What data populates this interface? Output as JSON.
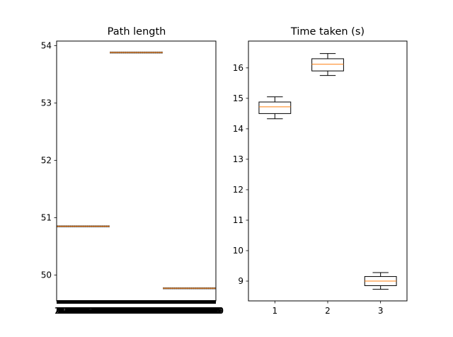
{
  "chart_data": [
    {
      "type": "boxplot",
      "title": "Path length",
      "xlabel": "",
      "ylabel": "",
      "ylim": [
        49.55,
        54.08
      ],
      "yticks": [
        50,
        51,
        52,
        53,
        54
      ],
      "x_tick_count": 300,
      "x_tick_label_note": "dense overlapping integer labels (illegible)",
      "groups": [
        {
          "from": 1,
          "to": 100,
          "value": 50.85
        },
        {
          "from": 101,
          "to": 200,
          "value": 53.88
        },
        {
          "from": 201,
          "to": 300,
          "value": 49.77
        }
      ]
    },
    {
      "type": "boxplot",
      "title": "Time taken (s)",
      "xlabel": "",
      "ylabel": "",
      "ylim": [
        8.35,
        16.88
      ],
      "yticks": [
        9,
        10,
        11,
        12,
        13,
        14,
        15,
        16
      ],
      "categories": [
        "1",
        "2",
        "3"
      ],
      "boxes": [
        {
          "whislo": 14.33,
          "q1": 14.5,
          "med": 14.72,
          "q3": 14.88,
          "whishi": 15.05
        },
        {
          "whislo": 15.75,
          "q1": 15.9,
          "med": 16.12,
          "q3": 16.3,
          "whishi": 16.47
        },
        {
          "whislo": 8.73,
          "q1": 8.85,
          "med": 9.0,
          "q3": 9.15,
          "whishi": 9.28
        }
      ]
    }
  ],
  "colors": {
    "median": "#ff7f0e",
    "box": "#000000",
    "axes": "#000000",
    "background": "#ffffff"
  }
}
